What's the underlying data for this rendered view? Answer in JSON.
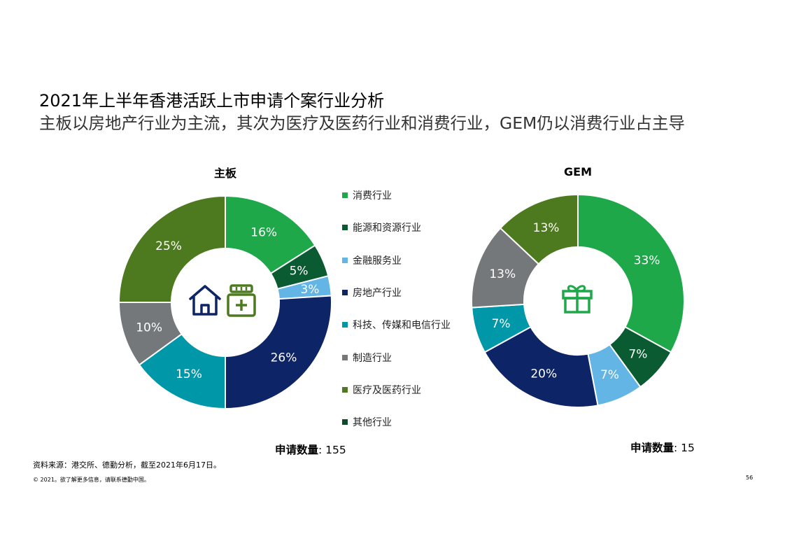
{
  "header": {
    "title": "2021年上半年香港活跃上市申请个案行业分析",
    "subtitle": "主板以房地产行业为主流，其次为医疗及医药行业和消费行业，GEM仍以消费行业占主导"
  },
  "colors": {
    "消费行业": "#1fa84a",
    "能源和资源行业": "#0b5b32",
    "金融服务业": "#62b5e5",
    "房地产行业": "#0d2466",
    "科技、传媒和电信行业": "#0097a9",
    "制造行业": "#75787b",
    "医疗及医药行业": "#4d7a1e",
    "其他行业": "#0f4a2b"
  },
  "legend": {
    "items": [
      {
        "label": "消费行业",
        "color": "#1fa84a"
      },
      {
        "label": "能源和资源行业",
        "color": "#0b5b32"
      },
      {
        "label": "金融服务业",
        "color": "#62b5e5"
      },
      {
        "label": "房地产行业",
        "color": "#0d2466"
      },
      {
        "label": "科技、传媒和电信行业",
        "color": "#0097a9"
      },
      {
        "label": "制造行业",
        "color": "#75787b"
      },
      {
        "label": "医疗及医药行业",
        "color": "#4d7a1e"
      },
      {
        "label": "其他行业",
        "color": "#0f4a2b"
      }
    ]
  },
  "chart_data": [
    {
      "type": "pie",
      "donut": true,
      "title": "主板",
      "categories": [
        "消费行业",
        "能源和资源行业",
        "金融服务业",
        "房地产行业",
        "科技、传媒和电信行业",
        "制造行业",
        "医疗及医药行业"
      ],
      "values": [
        16,
        5,
        3,
        26,
        15,
        10,
        25
      ],
      "labels": [
        "16%",
        "5%",
        "3%",
        "26%",
        "15%",
        "10%",
        "25%"
      ],
      "count_label": "申请数量",
      "count_value": ": 155",
      "center_icons": [
        "house-icon",
        "medicine-box-icon"
      ]
    },
    {
      "type": "pie",
      "donut": true,
      "title": "GEM",
      "categories": [
        "消费行业",
        "能源和资源行业",
        "金融服务业",
        "房地产行业",
        "科技、传媒和电信行业",
        "制造行业",
        "医疗及医药行业"
      ],
      "values": [
        33,
        7,
        7,
        20,
        7,
        13,
        13
      ],
      "labels": [
        "33%",
        "7%",
        "7%",
        "20%",
        "7%",
        "13%",
        "13%"
      ],
      "count_label": "申请数量",
      "count_value": ": 15",
      "center_icons": [
        "gift-icon"
      ]
    }
  ],
  "footer": {
    "source": "资料来源：港交所、德勤分析，截至2021年6月17日。",
    "copyright": "© 2021。欲了解更多信息，请联系德勤中国。",
    "page_number": "56"
  }
}
